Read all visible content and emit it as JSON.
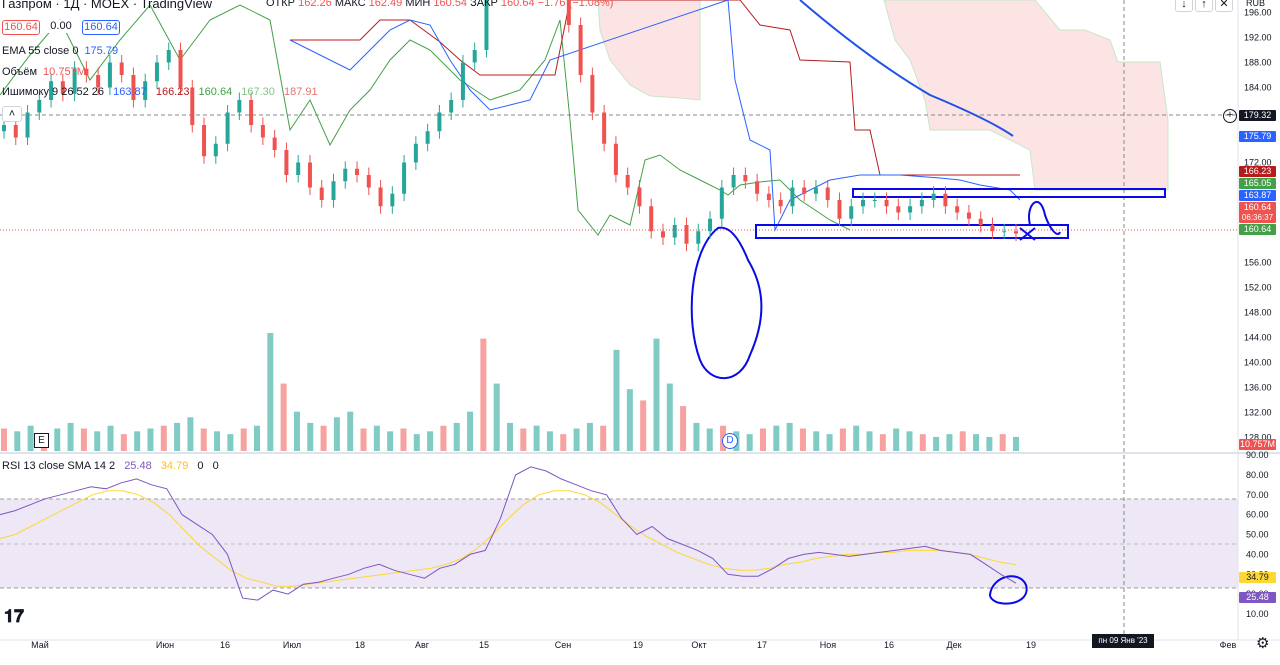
{
  "header": {
    "title": "Газпром · 1Д · MOEX · TradingView",
    "price_box": "160.64",
    "change_box": "0.00",
    "price_box2": "160.64",
    "ohlc": [
      {
        "label": "ОТКР",
        "value": "162.26"
      },
      {
        "label": "МАКС",
        "value": "162.49"
      },
      {
        "label": "МИН",
        "value": "160.54"
      },
      {
        "label": "ЗАКР",
        "value": "160.64"
      }
    ],
    "change": "−1.76 (−1.08%)"
  },
  "indicators": {
    "ema": {
      "label": "EMA 55 close 0",
      "value": "175.79"
    },
    "volume": {
      "label": "Объём",
      "value": "10.757M"
    },
    "ichimoku": {
      "label": "Ишимоку 9 26 52 26",
      "values": [
        "163.87",
        "166.23",
        "160.64",
        "167.30",
        "187.91"
      ]
    },
    "rsi": {
      "label": "RSI 13 close SMA 14 2",
      "values": [
        "25.48",
        "34.79",
        "0",
        "0"
      ]
    }
  },
  "colors": {
    "up": "#26a69a",
    "down": "#ef5350",
    "volume_up": "#80cbc4",
    "volume_down": "#f7a1a1",
    "ema": "#1e53e5",
    "tenkan": "#2962ff",
    "kijun": "#b71c1c",
    "chikou": "#43a047",
    "cloud_bear": "#fce4e4",
    "rsi_line": "#7e57c2",
    "rsi_sma": "#fdd835",
    "rsi_band": "#ede7f6",
    "annotation": "#0a0ae6"
  },
  "price_scale": {
    "currency": "RUB",
    "ticks": [
      "196.00",
      "192.00",
      "188.00",
      "184.00",
      "176.00",
      "172.00",
      "156.00",
      "152.00",
      "148.00",
      "144.00",
      "140.00",
      "136.00",
      "132.00",
      "128.00"
    ],
    "tags": [
      {
        "text": "179.32",
        "bg": "#131722"
      },
      {
        "text": "175.79",
        "bg": "#2962ff"
      },
      {
        "text": "166.23",
        "bg": "#b71c1c"
      },
      {
        "text": "165.05",
        "bg": "#43a047"
      },
      {
        "text": "163.87",
        "bg": "#2962ff"
      },
      {
        "text": "160.64",
        "bg": "#ef5350"
      },
      {
        "text": "06:36:37",
        "bg": "#ef5350"
      },
      {
        "text": "160.64",
        "bg": "#43a047"
      },
      {
        "text": "10.757M",
        "bg": "#ef5350"
      }
    ]
  },
  "rsi_scale": {
    "ticks": [
      "90.00",
      "80.00",
      "70.00",
      "60.00",
      "50.00",
      "40.00",
      "30.00",
      "20.00",
      "10.00"
    ],
    "tags": [
      {
        "text": "34.79",
        "bg": "#fdd835"
      },
      {
        "text": "25.48",
        "bg": "#7e57c2"
      }
    ]
  },
  "time_axis": {
    "labels": [
      "Май",
      "Июн",
      "16",
      "Июл",
      "18",
      "Авг",
      "15",
      "Сен",
      "19",
      "Окт",
      "17",
      "Ноя",
      "16",
      "Дек",
      "19",
      "Фев"
    ],
    "crosshair": "пн 09 Янв '23"
  },
  "markers": {
    "earnings": "E",
    "dividend": "D"
  },
  "chart_data": {
    "type": "candlestick",
    "title": "Газпром · 1Д · MOEX · TradingView",
    "ylim": [
      126,
      198
    ],
    "rsi_levels": {
      "upper": 70,
      "middle": 50,
      "lower": 30
    },
    "candles_close": [
      178,
      176,
      180,
      182,
      185,
      183,
      187,
      186,
      184,
      188,
      186,
      182,
      185,
      188,
      190,
      184,
      178,
      173,
      175,
      180,
      182,
      178,
      176,
      174,
      170,
      172,
      168,
      166,
      169,
      171,
      170,
      168,
      165,
      167,
      172,
      175,
      177,
      180,
      182,
      188,
      190,
      205,
      214,
      214,
      210,
      208,
      205,
      200,
      194,
      186,
      180,
      175,
      170,
      168,
      165,
      161,
      160,
      162,
      159,
      161,
      163,
      168,
      170,
      169,
      167,
      166,
      165,
      168,
      167,
      168,
      166,
      163,
      165,
      166,
      166,
      165,
      164,
      165,
      166,
      167,
      165,
      164,
      163,
      162,
      161,
      161,
      160.64
    ],
    "rsi_values": [
      60,
      62,
      65,
      68,
      70,
      72,
      74,
      73,
      76,
      78,
      75,
      73,
      60,
      55,
      50,
      40,
      18,
      17,
      22,
      20,
      25,
      26,
      28,
      30,
      33,
      35,
      32,
      30,
      28,
      33,
      35,
      40,
      42,
      58,
      80,
      84,
      82,
      78,
      75,
      72,
      70,
      58,
      50,
      54,
      48,
      45,
      42,
      38,
      30,
      29,
      29,
      33,
      38,
      40,
      41,
      40,
      39,
      40,
      41,
      42,
      43,
      44,
      42,
      41,
      40,
      35,
      30,
      25.48
    ],
    "rsi_sma_values": [
      48,
      50,
      54,
      58,
      62,
      66,
      70,
      72,
      72,
      70,
      66,
      60,
      52,
      44,
      38,
      32,
      28,
      26,
      24,
      24,
      25,
      26,
      27,
      28,
      29,
      30,
      31,
      32,
      33,
      35,
      38,
      43,
      50,
      58,
      65,
      70,
      72,
      72,
      70,
      66,
      60,
      54,
      49,
      45,
      41,
      38,
      35,
      33,
      32,
      32,
      33,
      35,
      36,
      38,
      39,
      40,
      40,
      41,
      41,
      42,
      42,
      42,
      41,
      40,
      38,
      36,
      34.79
    ],
    "volume_values": [
      8,
      7,
      9,
      6,
      8,
      10,
      8,
      7,
      9,
      6,
      7,
      8,
      9,
      10,
      12,
      8,
      7,
      6,
      8,
      9,
      42,
      24,
      14,
      10,
      9,
      12,
      14,
      8,
      9,
      7,
      8,
      6,
      7,
      9,
      10,
      14,
      40,
      24,
      10,
      8,
      9,
      7,
      6,
      8,
      10,
      9,
      36,
      22,
      18,
      40,
      24,
      16,
      10,
      8,
      9,
      7,
      6,
      8,
      9,
      10,
      8,
      7,
      6,
      8,
      9,
      7,
      6,
      8,
      7,
      6,
      5,
      6,
      7,
      6,
      5,
      6,
      5
    ]
  }
}
